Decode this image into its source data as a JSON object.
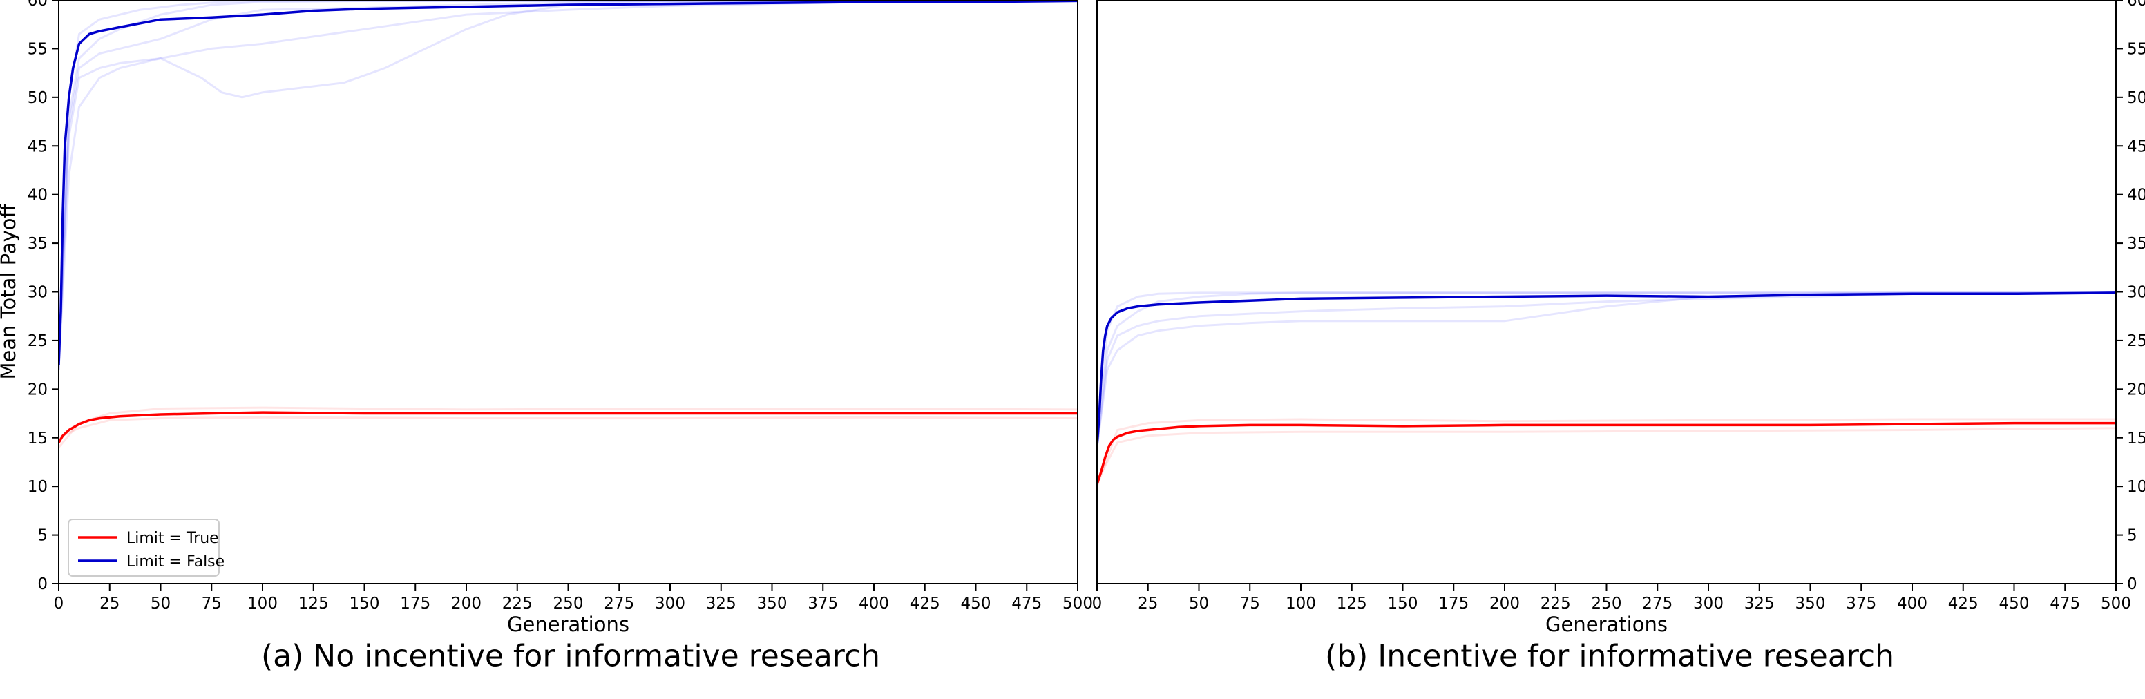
{
  "chart_data": [
    {
      "type": "line",
      "panel": "a",
      "xlabel": "Generations",
      "ylabel": "Mean Total Payoff",
      "xlim": [
        0,
        500
      ],
      "ylim": [
        0,
        60
      ],
      "y_axis_side": "left",
      "xticks": [
        0,
        25,
        50,
        75,
        100,
        125,
        150,
        175,
        200,
        225,
        250,
        275,
        300,
        325,
        350,
        375,
        400,
        425,
        450,
        475,
        500
      ],
      "yticks": [
        0,
        5,
        10,
        15,
        20,
        25,
        30,
        35,
        40,
        45,
        50,
        55,
        60
      ],
      "grid": false,
      "legend": {
        "placement": "lower-left",
        "entries": [
          "Limit = True",
          "Limit = False"
        ]
      },
      "series": [
        {
          "name": "Limit = True",
          "color": "#ff0000",
          "x": [
            0,
            2,
            5,
            10,
            15,
            20,
            30,
            40,
            50,
            75,
            100,
            150,
            200,
            250,
            300,
            350,
            400,
            450,
            500
          ],
          "y": [
            14.5,
            15.2,
            15.8,
            16.4,
            16.8,
            17.0,
            17.2,
            17.3,
            17.4,
            17.5,
            17.6,
            17.5,
            17.5,
            17.5,
            17.5,
            17.5,
            17.5,
            17.5,
            17.5
          ]
        },
        {
          "name": "Limit = False",
          "color": "#0000cc",
          "x": [
            0,
            1,
            2,
            3,
            5,
            7,
            10,
            15,
            20,
            25,
            30,
            40,
            50,
            75,
            100,
            125,
            150,
            175,
            200,
            250,
            300,
            350,
            400,
            450,
            500
          ],
          "y": [
            22.5,
            28,
            38,
            45,
            50,
            53,
            55.5,
            56.5,
            56.8,
            57.0,
            57.2,
            57.6,
            58.0,
            58.2,
            58.5,
            58.9,
            59.1,
            59.2,
            59.3,
            59.5,
            59.6,
            59.7,
            59.8,
            59.8,
            59.9
          ]
        }
      ],
      "faint_runs": [
        {
          "color": "#0000ff",
          "x": [
            0,
            5,
            10,
            20,
            30,
            50,
            75,
            100,
            150,
            200,
            250,
            300,
            350,
            400,
            450,
            500
          ],
          "y": [
            22,
            47,
            53,
            54.5,
            55,
            56,
            58,
            59,
            59.2,
            59.5,
            59.7,
            59.8,
            59.8,
            59.9,
            59.9,
            59.9
          ]
        },
        {
          "color": "#0000ff",
          "x": [
            0,
            5,
            10,
            20,
            30,
            50,
            75,
            100,
            150,
            200,
            250,
            300,
            350,
            400,
            450,
            500
          ],
          "y": [
            23,
            48,
            54,
            56,
            57,
            58.5,
            59.5,
            59.8,
            59.9,
            59.9,
            59.9,
            59.9,
            59.9,
            59.9,
            59.9,
            59.9
          ]
        },
        {
          "color": "#0000ff",
          "x": [
            0,
            5,
            10,
            20,
            30,
            50,
            70,
            80,
            90,
            100,
            120,
            140,
            160,
            180,
            200,
            220,
            250,
            300,
            350,
            400,
            500
          ],
          "y": [
            22,
            42,
            49,
            52,
            53,
            54,
            52,
            50.5,
            50,
            50.5,
            51,
            51.5,
            53,
            55,
            57,
            58.5,
            59.5,
            59.6,
            59.8,
            59.9,
            59.9
          ]
        },
        {
          "color": "#0000ff",
          "x": [
            0,
            5,
            10,
            20,
            30,
            50,
            75,
            100,
            150,
            200,
            250,
            300,
            350,
            400,
            450,
            500
          ],
          "y": [
            22,
            46,
            52,
            53,
            53.5,
            54,
            55,
            55.5,
            57,
            58.5,
            59,
            59.4,
            59.6,
            59.8,
            59.9,
            59.9
          ]
        },
        {
          "color": "#0000ff",
          "x": [
            0,
            5,
            10,
            20,
            40,
            60,
            80,
            100,
            150,
            200,
            250,
            300,
            350,
            400,
            450,
            500
          ],
          "y": [
            23,
            50,
            56.5,
            58,
            59,
            59.5,
            59.8,
            59.9,
            59.9,
            59.9,
            59.9,
            59.9,
            59.9,
            59.9,
            59.9,
            59.9
          ]
        },
        {
          "color": "#ff0000",
          "x": [
            0,
            10,
            25,
            50,
            100,
            200,
            300,
            400,
            500
          ],
          "y": [
            14,
            16.5,
            17.5,
            18,
            18.1,
            17.9,
            18,
            18,
            17.9
          ]
        },
        {
          "color": "#ff0000",
          "x": [
            0,
            10,
            25,
            50,
            100,
            200,
            300,
            400,
            500
          ],
          "y": [
            15,
            16,
            16.8,
            17,
            17.1,
            17,
            17,
            17.1,
            17
          ]
        }
      ]
    },
    {
      "type": "line",
      "panel": "b",
      "xlabel": "Generations",
      "ylabel": "",
      "xlim": [
        0,
        500
      ],
      "ylim": [
        0,
        60
      ],
      "y_axis_side": "right",
      "xticks": [
        0,
        25,
        50,
        75,
        100,
        125,
        150,
        175,
        200,
        225,
        250,
        275,
        300,
        325,
        350,
        375,
        400,
        425,
        450,
        475,
        500
      ],
      "yticks": [
        0,
        5,
        10,
        15,
        20,
        25,
        30,
        35,
        40,
        45,
        50,
        55,
        60
      ],
      "grid": false,
      "series": [
        {
          "name": "Limit = True",
          "color": "#ff0000",
          "x": [
            0,
            2,
            4,
            6,
            8,
            10,
            15,
            20,
            30,
            40,
            50,
            75,
            100,
            150,
            200,
            250,
            300,
            350,
            400,
            450,
            500
          ],
          "y": [
            10.2,
            11.5,
            13,
            14.2,
            14.8,
            15.1,
            15.5,
            15.7,
            15.9,
            16.1,
            16.2,
            16.3,
            16.3,
            16.2,
            16.3,
            16.3,
            16.3,
            16.3,
            16.4,
            16.5,
            16.5
          ]
        },
        {
          "name": "Limit = False",
          "color": "#0000cc",
          "x": [
            0,
            1,
            2,
            3,
            4,
            5,
            7,
            10,
            15,
            20,
            30,
            50,
            75,
            100,
            150,
            200,
            250,
            300,
            350,
            400,
            450,
            500
          ],
          "y": [
            14.2,
            17,
            21,
            24,
            25.5,
            26.5,
            27.3,
            27.9,
            28.3,
            28.5,
            28.7,
            28.9,
            29.1,
            29.3,
            29.4,
            29.5,
            29.6,
            29.5,
            29.7,
            29.8,
            29.8,
            29.9
          ]
        }
      ],
      "faint_runs": [
        {
          "color": "#0000ff",
          "x": [
            0,
            5,
            10,
            20,
            30,
            50,
            75,
            100,
            150,
            200,
            250,
            300,
            350,
            400,
            500
          ],
          "y": [
            14,
            24,
            26.5,
            28,
            29,
            29.5,
            29.8,
            29.9,
            29.9,
            29.9,
            29.9,
            29.9,
            29.9,
            29.9,
            29.9
          ]
        },
        {
          "color": "#0000ff",
          "x": [
            0,
            5,
            10,
            20,
            30,
            50,
            75,
            100,
            150,
            200,
            250,
            300,
            350,
            400,
            500
          ],
          "y": [
            14,
            22,
            24,
            25.5,
            26,
            26.5,
            26.8,
            27,
            27,
            27,
            28.5,
            29.5,
            29.8,
            29.9,
            29.9
          ]
        },
        {
          "color": "#0000ff",
          "x": [
            0,
            5,
            10,
            20,
            30,
            50,
            75,
            100,
            150,
            200,
            250,
            300,
            350,
            400,
            500
          ],
          "y": [
            15,
            26,
            28.5,
            29.5,
            29.8,
            29.9,
            29.9,
            29.9,
            29.9,
            29.9,
            29.9,
            29.9,
            29.9,
            29.9,
            29.9
          ]
        },
        {
          "color": "#0000ff",
          "x": [
            0,
            5,
            10,
            20,
            30,
            50,
            100,
            150,
            200,
            250,
            300,
            350,
            400,
            500
          ],
          "y": [
            14,
            23,
            25.5,
            26.5,
            27,
            27.5,
            28,
            28.3,
            28.5,
            29,
            29.3,
            29.5,
            29.8,
            29.9
          ]
        },
        {
          "color": "#ff0000",
          "x": [
            0,
            10,
            25,
            50,
            100,
            200,
            300,
            400,
            500
          ],
          "y": [
            10,
            15.8,
            16.5,
            16.8,
            16.9,
            16.7,
            16.8,
            16.9,
            16.9
          ]
        },
        {
          "color": "#ff0000",
          "x": [
            0,
            10,
            25,
            50,
            100,
            200,
            300,
            400,
            500
          ],
          "y": [
            10.5,
            14.5,
            15.2,
            15.5,
            15.6,
            15.6,
            15.7,
            15.8,
            16
          ]
        }
      ]
    }
  ],
  "captions": {
    "a": "(a) No incentive for informative research",
    "b": "(b) Incentive for informative research"
  }
}
